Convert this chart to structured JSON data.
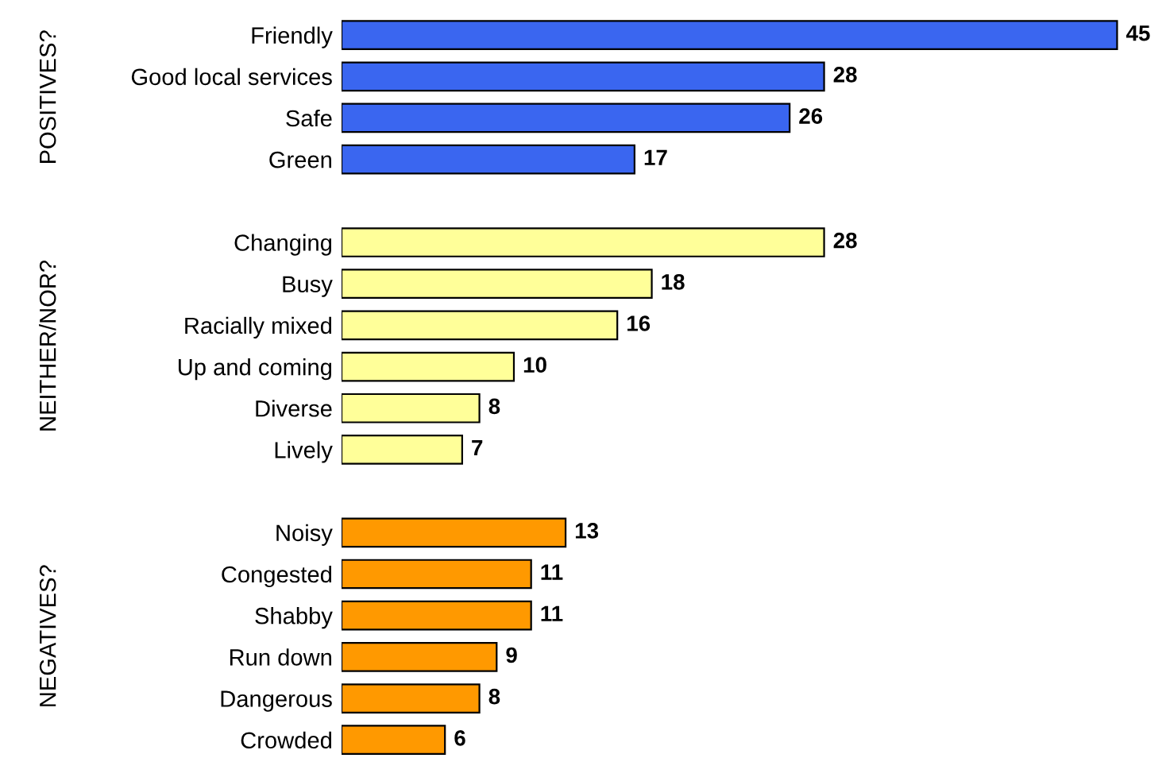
{
  "chart_data": {
    "type": "bar",
    "orientation": "horizontal",
    "data_labels": true,
    "grid": false,
    "legend": false,
    "categories": [
      "Friendly",
      "Good local services",
      "Safe",
      "Green",
      null,
      "Changing",
      "Busy",
      "Racially mixed",
      "Up and coming",
      "Diverse",
      "Lively",
      null,
      "Noisy",
      "Congested",
      "Shabby",
      "Run down",
      "Dangerous",
      "Crowded"
    ],
    "series": [
      {
        "color": "#3a66f0",
        "values": [
          45,
          28,
          26,
          17,
          null,
          null,
          null,
          null,
          null,
          null,
          null,
          null,
          null,
          null,
          null,
          null,
          null,
          null
        ]
      },
      {
        "color": "#ffff99",
        "values": [
          null,
          null,
          null,
          null,
          null,
          28,
          18,
          16,
          10,
          8,
          7,
          null,
          null,
          null,
          null,
          null,
          null,
          null
        ]
      },
      {
        "color": "#ff9900",
        "values": [
          null,
          null,
          null,
          null,
          null,
          null,
          null,
          null,
          null,
          null,
          null,
          null,
          13,
          11,
          11,
          9,
          8,
          6
        ]
      }
    ],
    "annotations": [
      "POSITIVES?",
      "NEITHER/NOR?",
      "NEGATIVES?"
    ]
  }
}
